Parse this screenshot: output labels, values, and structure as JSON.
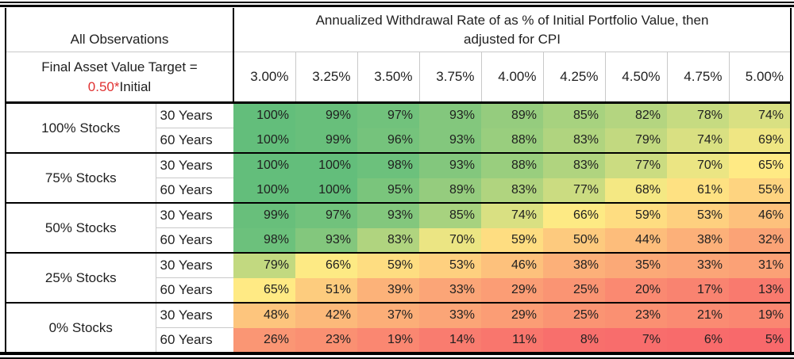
{
  "page": {
    "background": "#ffffff"
  },
  "header": {
    "observations_label": "All Observations",
    "target_line1": "Final Asset Value Target =",
    "target_red": "0.50*",
    "target_black": "Initial",
    "title_line1": "Annualized Withdrawal Rate of as % of Initial Portfolio Value, then",
    "title_line2": "adjusted for CPI"
  },
  "colors": {
    "text": "#1f1f1f",
    "red_text": "#e03131",
    "border_dark": "#000000",
    "border_light": "#c9c9c9",
    "scale_min": "#F8696B",
    "scale_mid": "#FFEB84",
    "scale_max": "#63BE7B"
  },
  "chart_data": {
    "type": "heatmap",
    "title": "Annualized Withdrawal Rate of as % of Initial Portfolio Value, then adjusted for CPI",
    "left_header": "All Observations",
    "left_subheader": "Final Asset Value Target = 0.50*Initial",
    "columns": [
      "3.00%",
      "3.25%",
      "3.50%",
      "3.75%",
      "4.00%",
      "4.25%",
      "4.50%",
      "4.75%",
      "5.00%"
    ],
    "value_unit": "%",
    "row_groups": [
      {
        "label": "100% Stocks",
        "rows": [
          {
            "period": "30 Years",
            "values": [
              100,
              99,
              97,
              93,
              89,
              85,
              82,
              78,
              74
            ]
          },
          {
            "period": "60 Years",
            "values": [
              100,
              99,
              96,
              93,
              88,
              83,
              79,
              74,
              69
            ]
          }
        ]
      },
      {
        "label": "75% Stocks",
        "rows": [
          {
            "period": "30 Years",
            "values": [
              100,
              100,
              98,
              93,
              88,
              83,
              77,
              70,
              65
            ]
          },
          {
            "period": "60 Years",
            "values": [
              100,
              100,
              95,
              89,
              83,
              77,
              68,
              61,
              55
            ]
          }
        ]
      },
      {
        "label": "50% Stocks",
        "rows": [
          {
            "period": "30 Years",
            "values": [
              99,
              97,
              93,
              85,
              74,
              66,
              59,
              53,
              46
            ]
          },
          {
            "period": "60 Years",
            "values": [
              98,
              93,
              83,
              70,
              59,
              50,
              44,
              38,
              32
            ]
          }
        ]
      },
      {
        "label": "25% Stocks",
        "rows": [
          {
            "period": "30 Years",
            "values": [
              79,
              66,
              59,
              53,
              46,
              38,
              35,
              33,
              31
            ]
          },
          {
            "period": "60 Years",
            "values": [
              65,
              51,
              39,
              33,
              29,
              25,
              20,
              17,
              13
            ]
          }
        ]
      },
      {
        "label": "0% Stocks",
        "rows": [
          {
            "period": "30 Years",
            "values": [
              48,
              42,
              37,
              33,
              29,
              25,
              23,
              21,
              19
            ]
          },
          {
            "period": "60 Years",
            "values": [
              26,
              23,
              19,
              14,
              11,
              8,
              7,
              6,
              5
            ]
          }
        ]
      }
    ],
    "color_scale": {
      "min_value": 5,
      "min_color": "#F8696B",
      "mid_value": 65.5,
      "mid_color": "#FFEB84",
      "max_value": 100,
      "max_color": "#63BE7B"
    }
  }
}
